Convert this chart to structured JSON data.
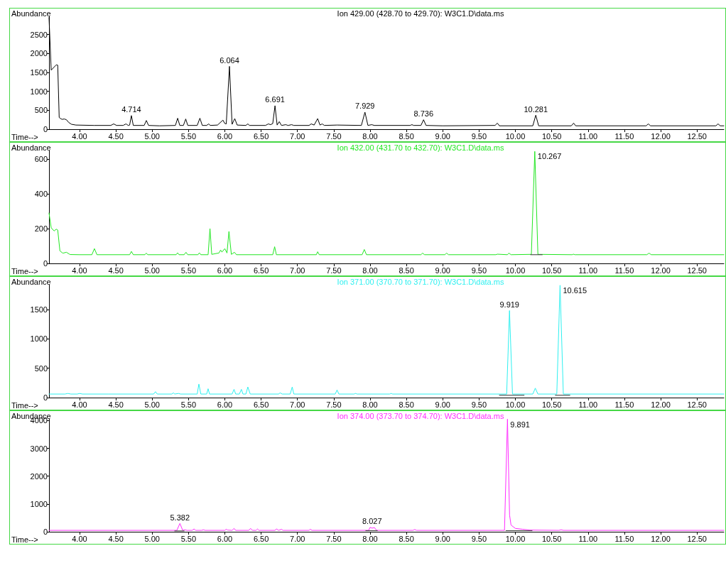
{
  "chart_data": [
    {
      "type": "line",
      "title": "Ion 429.00 (428.70 to 429.70): W3C1.D\\data.ms",
      "xlabel": "Time-->",
      "ylabel": "Abundance",
      "xlim": [
        3.58,
        12.87
      ],
      "xticks": [
        {
          "value": 4,
          "label": "4.00"
        },
        {
          "value": 4.5,
          "label": "4.50"
        },
        {
          "value": 5,
          "label": "5.00"
        },
        {
          "value": 5.5,
          "label": "5.50"
        },
        {
          "value": 6,
          "label": "6.00"
        },
        {
          "value": 6.5,
          "label": "6.50"
        },
        {
          "value": 7,
          "label": "7.00"
        },
        {
          "value": 7.5,
          "label": "7.50"
        },
        {
          "value": 8,
          "label": "8.00"
        },
        {
          "value": 8.5,
          "label": "8.50"
        },
        {
          "value": 9,
          "label": "9.00"
        },
        {
          "value": 9.5,
          "label": "9.50"
        },
        {
          "value": 10,
          "label": "10.00"
        },
        {
          "value": 10.5,
          "label": "10.50"
        },
        {
          "value": 11,
          "label": "11.00"
        },
        {
          "value": 11.5,
          "label": "11.50"
        },
        {
          "value": 12,
          "label": "12.00"
        },
        {
          "value": 12.5,
          "label": "12.50"
        }
      ],
      "ylim": [
        0,
        2980
      ],
      "yticks": [
        0,
        500,
        1000,
        1500,
        2000,
        2500
      ],
      "series": [
        {
          "color": "#000000",
          "x": [
            3.58,
            3.61,
            3.68,
            3.7,
            3.72,
            3.74,
            3.76,
            3.79,
            3.82,
            3.85,
            3.89,
            3.95,
            4.2,
            4.43,
            4.47,
            4.51,
            4.6,
            4.64,
            4.67,
            4.69,
            4.714,
            4.74,
            4.89,
            4.92,
            4.95,
            5.1,
            5.32,
            5.351,
            5.38,
            5.43,
            5.462,
            5.49,
            5.62,
            5.657,
            5.69,
            5.75,
            5.778,
            5.8,
            5.9,
            5.974,
            6.0,
            6.02,
            6.064,
            6.1,
            6.137,
            6.17,
            6.29,
            6.317,
            6.34,
            6.56,
            6.6,
            6.63,
            6.66,
            6.691,
            6.72,
            6.75,
            6.78,
            6.84,
            6.87,
            6.92,
            6.95,
            7.16,
            7.19,
            7.23,
            7.278,
            7.31,
            7.341,
            7.37,
            7.545,
            7.88,
            7.929,
            7.97,
            8.022,
            8.06,
            8.55,
            8.576,
            8.6,
            8.7,
            8.736,
            8.77,
            9.0,
            9.72,
            9.752,
            9.78,
            10.24,
            10.281,
            10.32,
            10.77,
            10.802,
            10.83,
            11.8,
            11.83,
            11.86,
            12.76,
            12.79,
            12.82,
            12.87
          ],
          "values": [
            2950,
            1560,
            1700,
            1690,
            310,
            280,
            260,
            270,
            250,
            180,
            130,
            110,
            100,
            100,
            140,
            100,
            100,
            140,
            100,
            110,
            360,
            100,
            100,
            230,
            100,
            90,
            100,
            290,
            100,
            100,
            270,
            100,
            100,
            290,
            100,
            100,
            140,
            100,
            110,
            240,
            150,
            140,
            1660,
            130,
            280,
            110,
            100,
            140,
            100,
            100,
            140,
            120,
            150,
            620,
            110,
            200,
            100,
            120,
            100,
            120,
            100,
            100,
            140,
            110,
            280,
            110,
            140,
            100,
            110,
            100,
            450,
            100,
            120,
            100,
            100,
            120,
            100,
            100,
            250,
            100,
            90,
            100,
            160,
            90,
            90,
            370,
            90,
            90,
            160,
            90,
            90,
            140,
            90,
            90,
            140,
            90,
            90
          ]
        }
      ],
      "annotations": [
        {
          "text": "4.714",
          "x": 4.714,
          "y": 360
        },
        {
          "text": "6.064",
          "x": 6.064,
          "y": 1660
        },
        {
          "text": "6.691",
          "x": 6.691,
          "y": 620
        },
        {
          "text": "7.929",
          "x": 7.929,
          "y": 450
        },
        {
          "text": "8.736",
          "x": 8.736,
          "y": 250
        },
        {
          "text": "10.281",
          "x": 10.281,
          "y": 370
        }
      ]
    },
    {
      "type": "line",
      "title": "Ion 432.00 (431.70 to 432.70): W3C1.D\\data.ms",
      "xlabel": "Time-->",
      "ylabel": "Abundance",
      "xlim": [
        3.58,
        12.87
      ],
      "xticks": [
        {
          "value": 4,
          "label": "4.00"
        },
        {
          "value": 4.5,
          "label": "4.50"
        },
        {
          "value": 5,
          "label": "5.00"
        },
        {
          "value": 5.5,
          "label": "5.50"
        },
        {
          "value": 6,
          "label": "6.00"
        },
        {
          "value": 6.5,
          "label": "6.50"
        },
        {
          "value": 7,
          "label": "7.00"
        },
        {
          "value": 7.5,
          "label": "7.50"
        },
        {
          "value": 8,
          "label": "8.00"
        },
        {
          "value": 8.5,
          "label": "8.50"
        },
        {
          "value": 9,
          "label": "9.00"
        },
        {
          "value": 9.5,
          "label": "9.50"
        },
        {
          "value": 10,
          "label": "10.00"
        },
        {
          "value": 10.5,
          "label": "10.50"
        },
        {
          "value": 11,
          "label": "11.00"
        },
        {
          "value": 11.5,
          "label": "11.50"
        },
        {
          "value": 12,
          "label": "12.00"
        },
        {
          "value": 12.5,
          "label": "12.50"
        }
      ],
      "ylim": [
        0,
        650
      ],
      "yticks": [
        0,
        200,
        400,
        600
      ],
      "series": [
        {
          "color": "#22e622",
          "x": [
            3.58,
            3.61,
            3.65,
            3.68,
            3.7,
            3.73,
            3.77,
            3.82,
            3.87,
            4.0,
            4.17,
            4.205,
            4.24,
            4.69,
            4.714,
            4.74,
            4.9,
            4.918,
            4.94,
            5.33,
            5.35,
            5.37,
            5.44,
            5.465,
            5.49,
            5.63,
            5.65,
            5.67,
            5.77,
            5.796,
            5.82,
            5.92,
            5.942,
            5.96,
            6.0,
            6.03,
            6.057,
            6.09,
            6.133,
            6.16,
            6.66,
            6.686,
            6.71,
            7.26,
            7.278,
            7.3,
            7.89,
            7.92,
            7.95,
            8.7,
            8.722,
            8.75,
            9.03,
            9.053,
            9.08,
            9.73,
            9.752,
            9.89,
            9.911,
            9.94,
            10.22,
            10.267,
            10.31,
            10.78,
            10.8,
            10.82,
            11.81,
            11.84,
            11.87,
            12.87
          ],
          "values": [
            290,
            205,
            187,
            197,
            192,
            72,
            59,
            64,
            51,
            50,
            50,
            85,
            50,
            50,
            69,
            50,
            50,
            59,
            50,
            50,
            61,
            50,
            50,
            64,
            50,
            50,
            61,
            50,
            50,
            200,
            52,
            60,
            77,
            65,
            85,
            60,
            184,
            52,
            64,
            50,
            50,
            96,
            50,
            50,
            67,
            50,
            50,
            80,
            50,
            50,
            59,
            50,
            50,
            59,
            50,
            50,
            53,
            50,
            59,
            50,
            52,
            645,
            52,
            50,
            53,
            50,
            50,
            59,
            50,
            50
          ]
        },
        {
          "color": "#333333",
          "x": [
            10.21,
            10.37
          ],
          "values": [
            50,
            50
          ]
        }
      ],
      "annotations": [
        {
          "text": "10.267",
          "x": 10.267,
          "y": 645
        }
      ]
    },
    {
      "type": "line",
      "title": "Ion 371.00 (370.70 to 371.70): W3C1.D\\data.ms",
      "xlabel": "Time-->",
      "ylabel": "Abundance",
      "xlim": [
        3.58,
        12.87
      ],
      "xticks": [
        {
          "value": 4,
          "label": "4.00"
        },
        {
          "value": 4.5,
          "label": "4.50"
        },
        {
          "value": 5,
          "label": "5.00"
        },
        {
          "value": 5.5,
          "label": "5.50"
        },
        {
          "value": 6,
          "label": "6.00"
        },
        {
          "value": 6.5,
          "label": "6.50"
        },
        {
          "value": 7,
          "label": "7.00"
        },
        {
          "value": 7.5,
          "label": "7.50"
        },
        {
          "value": 8,
          "label": "8.00"
        },
        {
          "value": 8.5,
          "label": "8.50"
        },
        {
          "value": 9,
          "label": "9.00"
        },
        {
          "value": 9.5,
          "label": "9.50"
        },
        {
          "value": 10,
          "label": "10.00"
        },
        {
          "value": 10.5,
          "label": "10.50"
        },
        {
          "value": 11,
          "label": "11.00"
        },
        {
          "value": 11.5,
          "label": "11.50"
        },
        {
          "value": 12,
          "label": "12.00"
        },
        {
          "value": 12.5,
          "label": "12.50"
        }
      ],
      "ylim": [
        0,
        1920
      ],
      "yticks": [
        0,
        500,
        1000,
        1500
      ],
      "series": [
        {
          "color": "#2ef0f0",
          "x": [
            3.58,
            3.8,
            3.84,
            3.88,
            3.97,
            4.0,
            4.04,
            4.4,
            5.02,
            5.045,
            5.07,
            5.27,
            5.293,
            5.31,
            5.363,
            5.39,
            5.62,
            5.643,
            5.67,
            5.75,
            5.77,
            5.79,
            6.1,
            6.127,
            6.15,
            6.2,
            6.228,
            6.25,
            6.29,
            6.317,
            6.35,
            6.74,
            6.762,
            6.79,
            6.9,
            6.928,
            6.95,
            7.52,
            7.545,
            7.57,
            7.78,
            7.8,
            7.82,
            8.27,
            8.29,
            8.31,
            9.88,
            9.919,
            9.96,
            10.24,
            10.274,
            10.31,
            10.57,
            10.615,
            10.66,
            12.87
          ],
          "values": [
            60,
            60,
            70,
            60,
            60,
            70,
            60,
            60,
            60,
            100,
            60,
            60,
            80,
            60,
            70,
            60,
            60,
            230,
            60,
            60,
            150,
            60,
            60,
            140,
            60,
            60,
            140,
            60,
            60,
            180,
            60,
            60,
            80,
            60,
            60,
            180,
            60,
            60,
            130,
            60,
            60,
            70,
            60,
            60,
            70,
            60,
            60,
            1480,
            60,
            60,
            160,
            60,
            60,
            1910,
            60,
            60
          ]
        },
        {
          "color": "#333333",
          "x": [
            9.78,
            10.12,
            10.13,
            10.55,
            10.75
          ],
          "values": [
            40,
            40,
            null,
            40,
            40
          ]
        }
      ],
      "annotations": [
        {
          "text": "9.919",
          "x": 9.919,
          "y": 1480
        },
        {
          "text": "10.615",
          "x": 10.615,
          "y": 1910
        }
      ]
    },
    {
      "type": "line",
      "title": "Ion 374.00 (373.70 to 374.70): W3C1.D\\data.ms",
      "xlabel": "Time-->",
      "ylabel": "Abundance",
      "xlim": [
        3.58,
        12.87
      ],
      "xticks": [
        {
          "value": 4,
          "label": "4.00"
        },
        {
          "value": 4.5,
          "label": "4.50"
        },
        {
          "value": 5,
          "label": "5.00"
        },
        {
          "value": 5.5,
          "label": "5.50"
        },
        {
          "value": 6,
          "label": "6.00"
        },
        {
          "value": 6.5,
          "label": "6.50"
        },
        {
          "value": 7,
          "label": "7.00"
        },
        {
          "value": 7.5,
          "label": "7.50"
        },
        {
          "value": 8,
          "label": "8.00"
        },
        {
          "value": 8.5,
          "label": "8.50"
        },
        {
          "value": 9,
          "label": "9.00"
        },
        {
          "value": 9.5,
          "label": "9.50"
        },
        {
          "value": 10,
          "label": "10.00"
        },
        {
          "value": 10.5,
          "label": "10.50"
        },
        {
          "value": 11,
          "label": "11.00"
        },
        {
          "value": 11.5,
          "label": "11.50"
        },
        {
          "value": 12,
          "label": "12.00"
        },
        {
          "value": 12.5,
          "label": "12.50"
        }
      ],
      "ylim": [
        0,
        4060
      ],
      "yticks": [
        0,
        1000,
        2000,
        3000,
        4000
      ],
      "series": [
        {
          "color": "#ff2cff",
          "x": [
            3.58,
            5.34,
            5.382,
            5.42,
            5.45,
            5.48,
            5.55,
            5.576,
            5.6,
            5.68,
            5.706,
            5.73,
            6.0,
            6.018,
            6.04,
            6.1,
            6.127,
            6.15,
            6.33,
            6.355,
            6.38,
            6.43,
            6.45,
            6.47,
            6.69,
            6.712,
            6.74,
            6.782,
            6.8,
            7.16,
            7.176,
            7.2,
            7.98,
            8.0,
            8.027,
            8.06,
            8.09,
            8.59,
            8.614,
            8.64,
            9.85,
            9.891,
            9.92,
            9.94,
            10.0,
            10.1,
            10.2,
            10.6,
            10.63,
            10.66,
            12.87
          ],
          "values": [
            50,
            50,
            300,
            50,
            70,
            50,
            50,
            100,
            50,
            50,
            70,
            50,
            50,
            90,
            60,
            50,
            120,
            50,
            50,
            120,
            50,
            50,
            100,
            50,
            50,
            100,
            50,
            90,
            50,
            50,
            90,
            50,
            50,
            160,
            130,
            150,
            50,
            50,
            80,
            50,
            50,
            4050,
            600,
            240,
            120,
            90,
            60,
            50,
            70,
            50,
            50
          ]
        },
        {
          "color": "#333333",
          "x": [
            5.31,
            5.44,
            5.45,
            7.94,
            8.1,
            8.11,
            9.87,
            10.23
          ],
          "values": [
            30,
            30,
            null,
            40,
            40,
            null,
            40,
            40
          ]
        }
      ],
      "annotations": [
        {
          "text": "5.382",
          "x": 5.382,
          "y": 300
        },
        {
          "text": "8.027",
          "x": 8.027,
          "y": 160
        },
        {
          "text": "9.891",
          "x": 9.891,
          "y": 4050
        }
      ]
    }
  ]
}
